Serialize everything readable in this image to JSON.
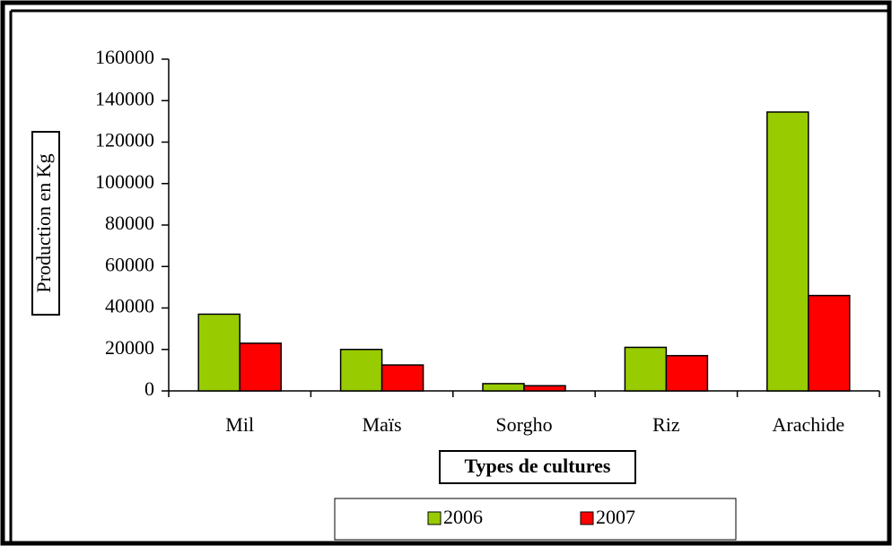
{
  "chart_data": {
    "type": "bar",
    "categories": [
      "Mil",
      "Maïs",
      "Sorgho",
      "Riz",
      "Arachide"
    ],
    "series": [
      {
        "name": "2006",
        "color": "#99cc00",
        "values": [
          37000,
          20000,
          3500,
          21000,
          134500
        ]
      },
      {
        "name": "2007",
        "color": "#ff0000",
        "values": [
          23000,
          12500,
          2500,
          17000,
          46000
        ]
      }
    ],
    "ylim": [
      0,
      160000
    ],
    "yticks": [
      0,
      20000,
      40000,
      60000,
      80000,
      100000,
      120000,
      140000,
      160000
    ],
    "ylabel": "Production en Kg",
    "xlabel": "Types de cultures",
    "grid": false
  }
}
